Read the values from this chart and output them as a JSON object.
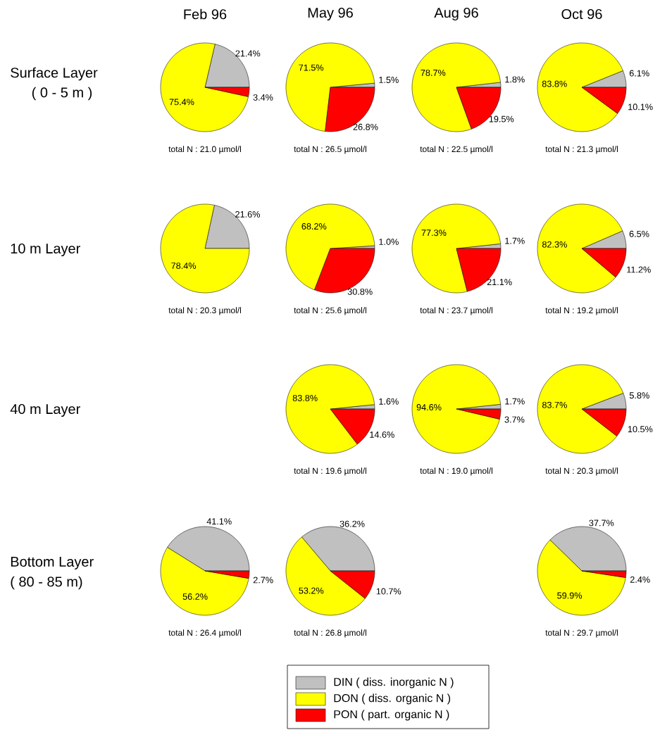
{
  "chart_data": [
    {
      "type": "other",
      "annotations": [
        "Feb 96",
        "May 96",
        "Aug 96",
        "Oct 96",
        "Surface Layer",
        "( 0 - 5 m )",
        "10 m Layer",
        "40 m Layer",
        "Bottom Layer",
        "( 80 - 85 m)"
      ]
    },
    {
      "type": "pie",
      "categories": [
        null,
        null,
        null
      ],
      "colors": [
        "#c0c0c0",
        "#ffff00",
        "#ff0000"
      ],
      "values": [
        21.4,
        75.4,
        3.4
      ],
      "value_labels": [
        "21.4%",
        "75.4%",
        "3.4%"
      ],
      "subtitle": "total N : 21.0 µmol/l"
    },
    {
      "type": "pie",
      "categories": [
        null,
        null,
        null
      ],
      "colors": [
        "#c0c0c0",
        "#ffff00",
        "#ff0000"
      ],
      "values": [
        1.5,
        71.5,
        26.8
      ],
      "value_labels": [
        "1.5%",
        "71.5%",
        "26.8%"
      ],
      "subtitle": "total N : 26.5 µmol/l"
    },
    {
      "type": "pie",
      "categories": [
        null,
        null,
        null
      ],
      "colors": [
        "#c0c0c0",
        "#ffff00",
        "#ff0000"
      ],
      "values": [
        1.8,
        78.7,
        19.5
      ],
      "value_labels": [
        "1.8%",
        "78.7%",
        "19.5%"
      ],
      "subtitle": "total N : 22.5 µmol/l"
    },
    {
      "type": "pie",
      "categories": [
        null,
        null,
        null
      ],
      "colors": [
        "#c0c0c0",
        "#ffff00",
        "#ff0000"
      ],
      "values": [
        6.1,
        83.8,
        10.1
      ],
      "value_labels": [
        "6.1%",
        "83.8%",
        "10.1%"
      ],
      "subtitle": "total N : 21.3 µmol/l"
    },
    {
      "type": "pie",
      "categories": [
        null,
        null,
        null
      ],
      "colors": [
        "#c0c0c0",
        "#ffff00",
        "#ff0000"
      ],
      "values": [
        21.6,
        78.4,
        null
      ],
      "value_labels": [
        "21.6%",
        "78.4%",
        null
      ],
      "subtitle": "total N : 20.3 µmol/l"
    },
    {
      "type": "pie",
      "categories": [
        null,
        null,
        null
      ],
      "colors": [
        "#c0c0c0",
        "#ffff00",
        "#ff0000"
      ],
      "values": [
        1.0,
        68.2,
        30.8
      ],
      "value_labels": [
        "1.0%",
        "68.2%",
        "30.8%"
      ],
      "subtitle": "total N : 25.6 µmol/l"
    },
    {
      "type": "pie",
      "categories": [
        null,
        null,
        null
      ],
      "colors": [
        "#c0c0c0",
        "#ffff00",
        "#ff0000"
      ],
      "values": [
        1.7,
        77.3,
        21.1
      ],
      "value_labels": [
        "1.7%",
        "77.3%",
        "21.1%"
      ],
      "subtitle": "total N : 23.7 µmol/l"
    },
    {
      "type": "pie",
      "categories": [
        null,
        null,
        null
      ],
      "colors": [
        "#c0c0c0",
        "#ffff00",
        "#ff0000"
      ],
      "values": [
        6.5,
        82.3,
        11.2
      ],
      "value_labels": [
        "6.5%",
        "82.3%",
        "11.2%"
      ],
      "subtitle": "total N : 19.2 µmol/l"
    },
    {
      "type": "pie",
      "categories": [
        null,
        null,
        null
      ],
      "colors": [
        "#c0c0c0",
        "#ffff00",
        "#ff0000"
      ],
      "values": [
        1.6,
        83.8,
        14.6
      ],
      "value_labels": [
        "1.6%",
        "83.8%",
        "14.6%"
      ],
      "subtitle": "total N : 19.6 µmol/l"
    },
    {
      "type": "pie",
      "categories": [
        null,
        null,
        null
      ],
      "colors": [
        "#c0c0c0",
        "#ffff00",
        "#ff0000"
      ],
      "values": [
        1.7,
        94.6,
        3.7
      ],
      "value_labels": [
        "1.7%",
        "94.6%",
        "3.7%"
      ],
      "subtitle": "total N : 19.0 µmol/l"
    },
    {
      "type": "pie",
      "categories": [
        null,
        null,
        null
      ],
      "colors": [
        "#c0c0c0",
        "#ffff00",
        "#ff0000"
      ],
      "values": [
        5.8,
        83.7,
        10.5
      ],
      "value_labels": [
        "5.8%",
        "83.7%",
        "10.5%"
      ],
      "subtitle": "total N : 20.3 µmol/l"
    },
    {
      "type": "pie",
      "categories": [
        null,
        null,
        null
      ],
      "colors": [
        "#c0c0c0",
        "#ffff00",
        "#ff0000"
      ],
      "values": [
        41.1,
        56.2,
        2.7
      ],
      "value_labels": [
        "41.1%",
        "56.2%",
        "2.7%"
      ],
      "subtitle": "total N : 26.4 µmol/l"
    },
    {
      "type": "pie",
      "categories": [
        null,
        null,
        null
      ],
      "colors": [
        "#c0c0c0",
        "#ffff00",
        "#ff0000"
      ],
      "values": [
        36.2,
        53.2,
        10.7
      ],
      "value_labels": [
        "36.2%",
        "53.2%",
        "10.7%"
      ],
      "subtitle": "total N : 26.8 µmol/l"
    },
    {
      "type": "pie",
      "categories": [
        "DIN ( diss. inorganic N )",
        "DON ( diss. organic N )",
        "PON ( part. organic N )"
      ],
      "colors": [
        "#c0c0c0",
        "#ffff00",
        "#ff0000"
      ],
      "values": [
        37.7,
        59.9,
        2.4
      ],
      "value_labels": [
        "37.7%",
        "59.9%",
        "2.4%"
      ],
      "subtitle": "total N : 29.7 µmol/l",
      "legend": "bottom"
    }
  ]
}
